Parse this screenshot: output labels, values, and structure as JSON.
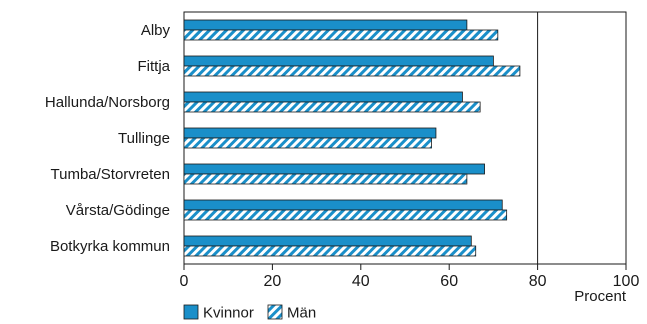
{
  "chart_data": {
    "type": "bar",
    "orientation": "horizontal",
    "categories": [
      "Alby",
      "Fittja",
      "Hallunda/Norsborg",
      "Tullinge",
      "Tumba/Storvreten",
      "Vårsta/Gödinge",
      "Botkyrka kommun"
    ],
    "series": [
      {
        "name": "Kvinnor",
        "values": [
          64,
          70,
          63,
          57,
          68,
          72,
          65
        ],
        "color": "#1a8fc9",
        "pattern": "solid"
      },
      {
        "name": "Män",
        "values": [
          71,
          76,
          67,
          56,
          64,
          73,
          66
        ],
        "color": "#1a8fc9",
        "pattern": "hatched"
      }
    ],
    "xlabel": "Procent",
    "xlim": [
      0,
      100
    ],
    "xticks": [
      "0",
      "20",
      "40",
      "60",
      "80",
      "100"
    ],
    "reference_line": 80,
    "legend_position": "bottom-left",
    "grid": false
  }
}
